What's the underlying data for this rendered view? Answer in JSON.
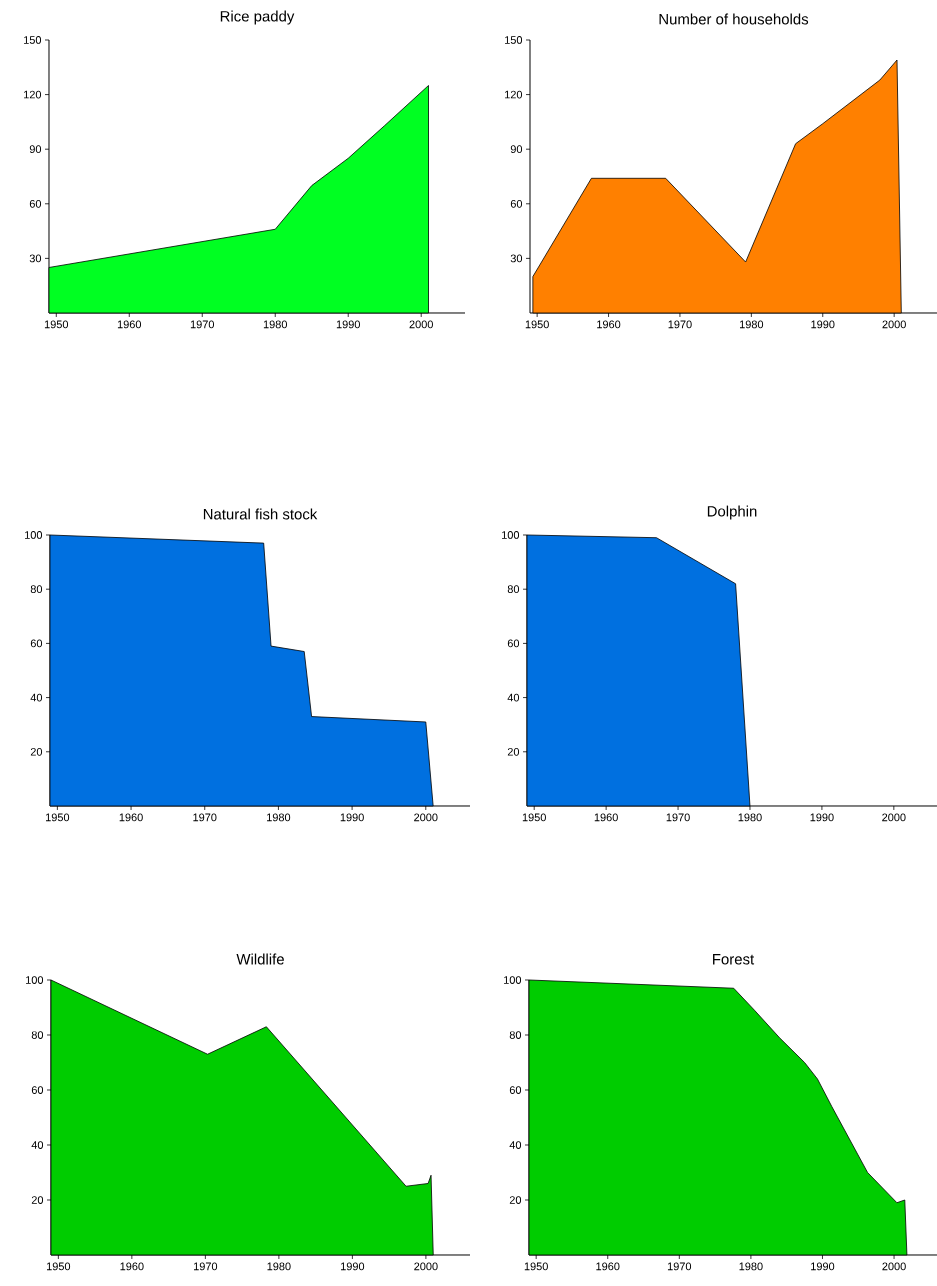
{
  "chart_data": [
    {
      "type": "area",
      "title": "Rice paddy",
      "color": "#00ff22",
      "xlim": [
        1949,
        2006
      ],
      "ylim": [
        0,
        150
      ],
      "xticks": [
        1950,
        1960,
        1970,
        1980,
        1990,
        2000
      ],
      "yticks": [
        30,
        60,
        90,
        120,
        150
      ],
      "x": [
        1949,
        1980,
        1985,
        1990,
        1995,
        2001
      ],
      "values": [
        25,
        46,
        70,
        85,
        103,
        125
      ]
    },
    {
      "type": "area",
      "title": "Number of households",
      "color": "#ff8000",
      "xlim": [
        1949,
        2006
      ],
      "ylim": [
        0,
        150
      ],
      "xticks": [
        1950,
        1960,
        1970,
        1980,
        1990,
        2000
      ],
      "yticks": [
        30,
        60,
        90,
        120,
        150
      ],
      "x": [
        1949.4,
        1957.6,
        1968,
        1979.2,
        1986.2,
        1990,
        1998,
        2000.4,
        2001
      ],
      "values": [
        20,
        74,
        74,
        28,
        93,
        104,
        128,
        139,
        0
      ]
    },
    {
      "type": "area",
      "title": "Natural fish stock",
      "color": "#0070e0",
      "xlim": [
        1949,
        2006
      ],
      "ylim": [
        0,
        100
      ],
      "xticks": [
        1950,
        1960,
        1970,
        1980,
        1990,
        2000
      ],
      "yticks": [
        20,
        40,
        60,
        80,
        100
      ],
      "x": [
        1949,
        1978,
        1979,
        1983.5,
        1984.5,
        2000,
        2001
      ],
      "values": [
        100,
        97,
        59,
        57,
        33,
        31,
        0
      ]
    },
    {
      "type": "area",
      "title": "Dolphin",
      "color": "#0070e0",
      "xlim": [
        1949,
        2006
      ],
      "ylim": [
        0,
        100
      ],
      "xticks": [
        1950,
        1960,
        1970,
        1980,
        1990,
        2000
      ],
      "yticks": [
        20,
        40,
        60,
        80,
        100
      ],
      "x": [
        1949,
        1967,
        1978,
        1980
      ],
      "values": [
        100,
        99,
        82,
        0
      ]
    },
    {
      "type": "area",
      "title": "Wildlife",
      "color": "#00cc00",
      "xlim": [
        1949,
        2006
      ],
      "ylim": [
        0,
        100
      ],
      "xticks": [
        1950,
        1960,
        1970,
        1980,
        1990,
        2000
      ],
      "yticks": [
        20,
        40,
        60,
        80,
        100
      ],
      "x": [
        1949,
        1970.3,
        1978.3,
        1997.3,
        2000.3,
        2000.7,
        2001
      ],
      "values": [
        100,
        73,
        83,
        25,
        26,
        29,
        0
      ]
    },
    {
      "type": "area",
      "title": "Forest",
      "color": "#00cc00",
      "xlim": [
        1949,
        2006
      ],
      "ylim": [
        0,
        100
      ],
      "xticks": [
        1950,
        1960,
        1970,
        1980,
        1990,
        2000
      ],
      "yticks": [
        20,
        40,
        60,
        80,
        100
      ],
      "x": [
        1949,
        1977.6,
        1980.5,
        1984,
        1987.5,
        1989.3,
        1991.3,
        1996.3,
        2000.4,
        2001.5,
        2001.8
      ],
      "values": [
        100,
        97,
        89,
        79,
        70,
        64,
        54,
        30,
        19,
        20,
        0
      ]
    }
  ]
}
